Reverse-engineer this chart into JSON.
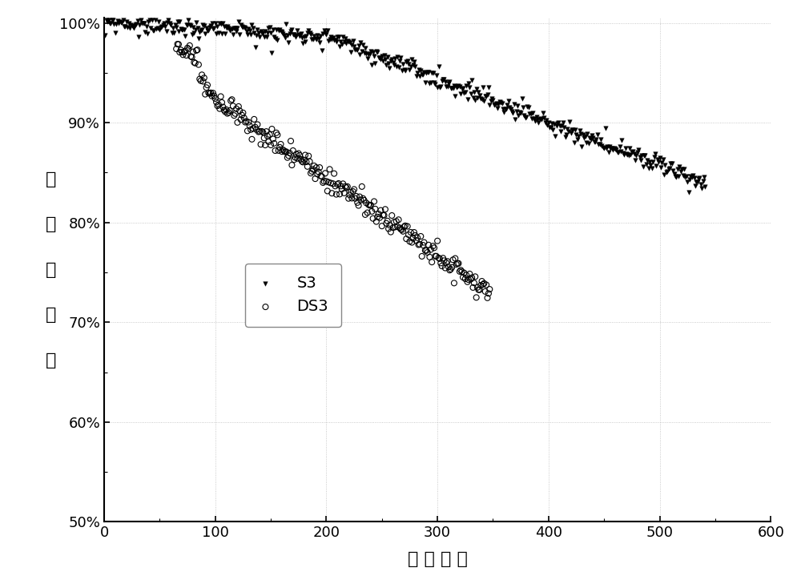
{
  "xlabel": "循 环 次 数",
  "ylabel_chars": [
    "容",
    "量",
    "保",
    "持",
    "率"
  ],
  "xlim": [
    0,
    600
  ],
  "ylim": [
    0.5,
    1.005
  ],
  "yticks": [
    0.5,
    0.6,
    0.7,
    0.8,
    0.9,
    1.0
  ],
  "xticks": [
    0,
    100,
    200,
    300,
    400,
    500,
    600
  ],
  "legend_labels": [
    "S3",
    "DS3"
  ],
  "background_color": "#ffffff",
  "marker_s3": "v",
  "marker_ds3": "o",
  "markersize_s3": 4,
  "markersize_ds3": 5
}
